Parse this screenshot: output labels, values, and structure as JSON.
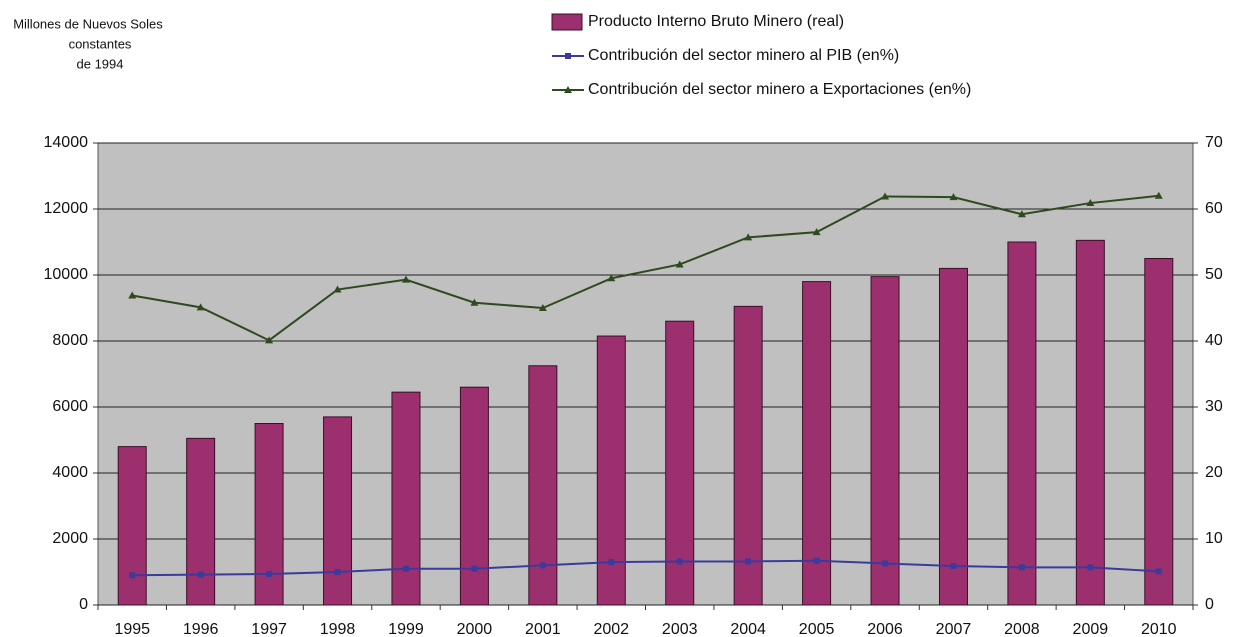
{
  "chart_data": {
    "type": "bar",
    "ylabel": [
      "Millones de Nuevos Soles",
      "constantes",
      "de 1994"
    ],
    "categories": [
      "1995",
      "1996",
      "1997",
      "1998",
      "1999",
      "2000",
      "2001",
      "2002",
      "2003",
      "2004",
      "2005",
      "2006",
      "2007",
      "2008",
      "2009",
      "2010"
    ],
    "series": [
      {
        "name": "Producto Interno Bruto Minero (real)",
        "type": "bar",
        "color": "#9c306e",
        "values": [
          4800,
          5050,
          5500,
          5700,
          6450,
          6600,
          7250,
          8150,
          8600,
          9050,
          9800,
          9950,
          10200,
          11000,
          11050,
          10500
        ]
      },
      {
        "name": "Contribución del sector minero al PIB (en%)",
        "type": "line",
        "axis": "y2",
        "marker": "square",
        "color": "#3b3b9c",
        "values": [
          4.5,
          4.6,
          4.7,
          5.0,
          5.5,
          5.5,
          6.0,
          6.5,
          6.6,
          6.6,
          6.7,
          6.3,
          5.9,
          5.7,
          5.7,
          5.1
        ]
      },
      {
        "name": "Contribución del sector minero a Exportaciones (en%)",
        "type": "line",
        "axis": "y2",
        "marker": "triangle",
        "color": "#2e4a1e",
        "values": [
          46.9,
          45.1,
          40.1,
          47.8,
          49.3,
          45.8,
          45.0,
          49.5,
          51.6,
          55.7,
          56.5,
          61.9,
          61.8,
          59.2,
          60.9,
          62.0
        ]
      }
    ],
    "ylim": [
      0,
      14000
    ],
    "yticks": [
      0,
      2000,
      4000,
      6000,
      8000,
      10000,
      12000,
      14000
    ],
    "y2lim": [
      0,
      70
    ],
    "y2ticks": [
      0,
      10,
      20,
      30,
      40,
      50,
      60,
      70
    ],
    "grid": true
  }
}
